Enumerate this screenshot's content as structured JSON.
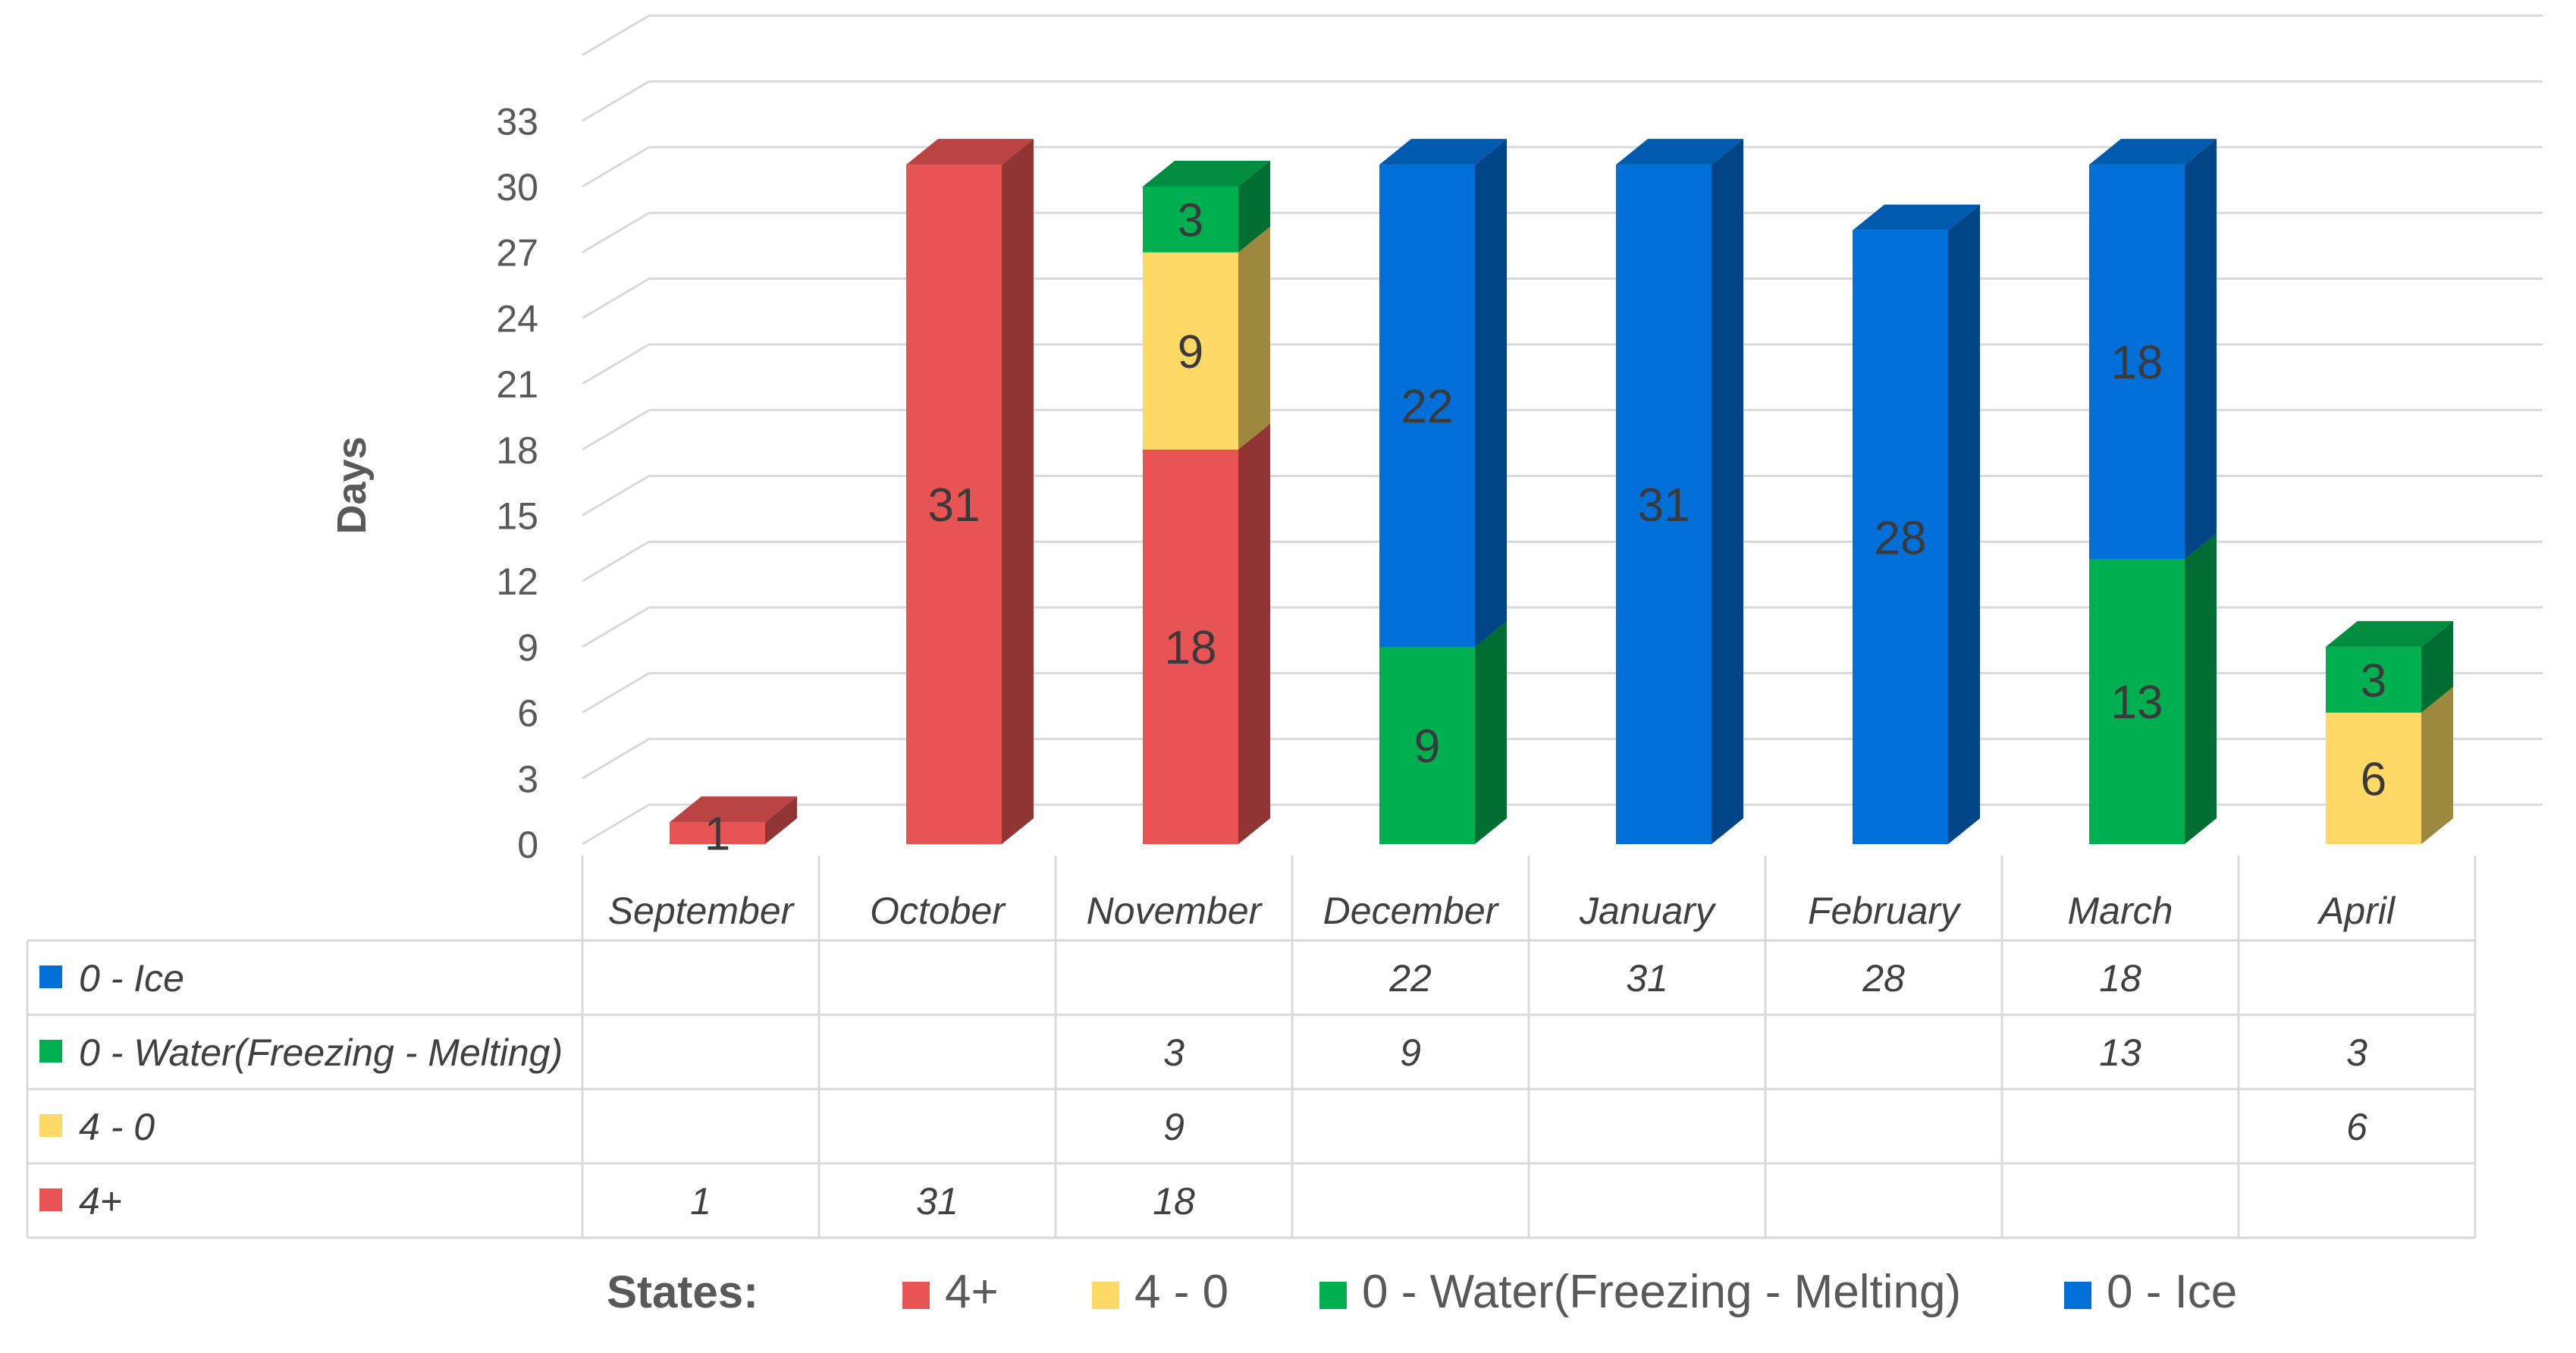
{
  "chart_data": {
    "type": "bar",
    "stacked": true,
    "three_d": true,
    "ylabel": "Days",
    "ylim": [
      0,
      33
    ],
    "yticks": [
      0,
      3,
      6,
      9,
      12,
      15,
      18,
      21,
      24,
      27,
      30,
      33
    ],
    "categories": [
      "September",
      "October",
      "November",
      "December",
      "January",
      "February",
      "March",
      "April"
    ],
    "series": [
      {
        "name": "4+",
        "color": "#e85454",
        "values": [
          1,
          31,
          18,
          null,
          null,
          null,
          null,
          null
        ]
      },
      {
        "name": "4 - 0",
        "color": "#ffd966",
        "values": [
          null,
          null,
          9,
          null,
          null,
          null,
          null,
          6
        ]
      },
      {
        "name": "0 - Water(Freezing - Melting)",
        "color": "#00b050",
        "values": [
          null,
          null,
          3,
          9,
          null,
          null,
          13,
          3
        ]
      },
      {
        "name": "0 - Ice",
        "color": "#0070d8",
        "values": [
          null,
          null,
          null,
          22,
          31,
          28,
          18,
          null
        ]
      }
    ],
    "table_rows": [
      "0 - Ice",
      "0 - Water(Freezing - Melting)",
      "4 - 0",
      "4+"
    ],
    "legend": {
      "title": "States:",
      "placement": "bottom",
      "items": [
        "4+",
        "4 - 0",
        "0 - Water(Freezing - Melting)",
        "0 - Ice"
      ]
    },
    "grid": true,
    "data_table": true
  }
}
